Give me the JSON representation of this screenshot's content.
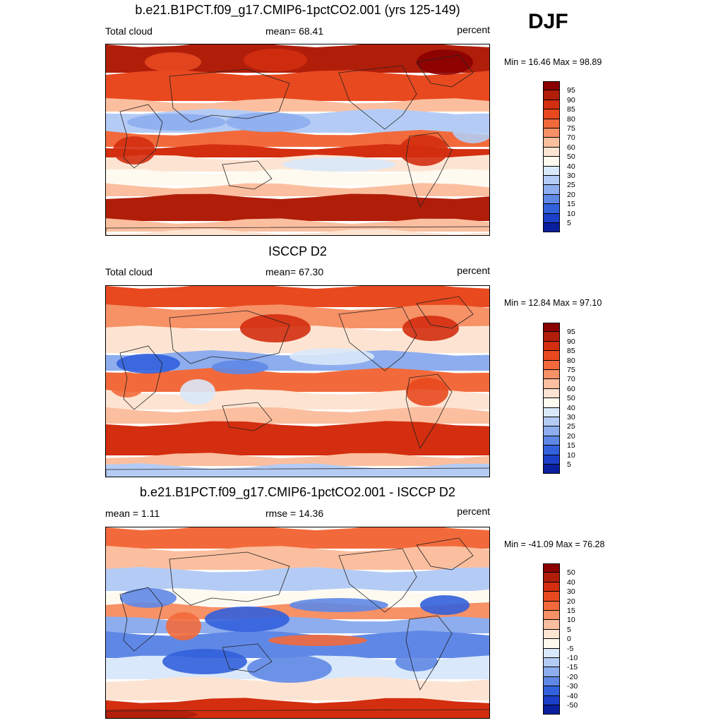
{
  "season_label": "DJF",
  "panels": [
    {
      "title": "b.e21.B1PCT.f09_g17.CMIP6-1pctCO2.001 (yrs 125-149)",
      "left_label": "Total cloud",
      "center_label": "mean=  68.41",
      "units": "percent",
      "minmax": "Min =  16.46 Max =  98.89",
      "colorbar_labels": [
        "95",
        "90",
        "85",
        "80",
        "75",
        "70",
        "60",
        "50",
        "40",
        "30",
        "25",
        "20",
        "15",
        "10",
        "5"
      ],
      "colorbar_colors": [
        "#8b0000",
        "#b01e0a",
        "#d32e0f",
        "#e8491f",
        "#f26a3b",
        "#f79166",
        "#fbbf9f",
        "#fde4d2",
        "#fffaf0",
        "#d9e8fa",
        "#b4ccf5",
        "#8dadee",
        "#5f88e6",
        "#3261db",
        "#1b3fc7",
        "#0a1f9e"
      ],
      "style": "model"
    },
    {
      "title": "ISCCP D2",
      "left_label": "Total cloud",
      "center_label": "mean=  67.30",
      "units": "percent",
      "minmax": "Min =  12.84 Max =  97.10",
      "colorbar_labels": [
        "95",
        "90",
        "85",
        "80",
        "75",
        "70",
        "60",
        "50",
        "40",
        "30",
        "25",
        "20",
        "15",
        "10",
        "5"
      ],
      "colorbar_colors": [
        "#8b0000",
        "#b01e0a",
        "#d32e0f",
        "#e8491f",
        "#f26a3b",
        "#f79166",
        "#fbbf9f",
        "#fde4d2",
        "#fffaf0",
        "#d9e8fa",
        "#b4ccf5",
        "#8dadee",
        "#5f88e6",
        "#3261db",
        "#1b3fc7",
        "#0a1f9e"
      ],
      "style": "obs"
    },
    {
      "title": "b.e21.B1PCT.f09_g17.CMIP6-1pctCO2.001 - ISCCP D2",
      "left_label": "mean =   1.11",
      "center_label": "rmse =  14.36",
      "units": "percent",
      "minmax": "Min = -41.09 Max =  76.28",
      "colorbar_labels": [
        "50",
        "40",
        "30",
        "20",
        "15",
        "10",
        "5",
        "0",
        "-5",
        "-10",
        "-15",
        "-20",
        "-30",
        "-40",
        "-50"
      ],
      "colorbar_colors": [
        "#8b0000",
        "#b01e0a",
        "#d32e0f",
        "#e8491f",
        "#f26a3b",
        "#f79166",
        "#fbbf9f",
        "#fde4d2",
        "#fffaf0",
        "#d9e8fa",
        "#b4ccf5",
        "#8dadee",
        "#5f88e6",
        "#3261db",
        "#1b3fc7",
        "#0a1f9e"
      ],
      "style": "diff"
    }
  ]
}
